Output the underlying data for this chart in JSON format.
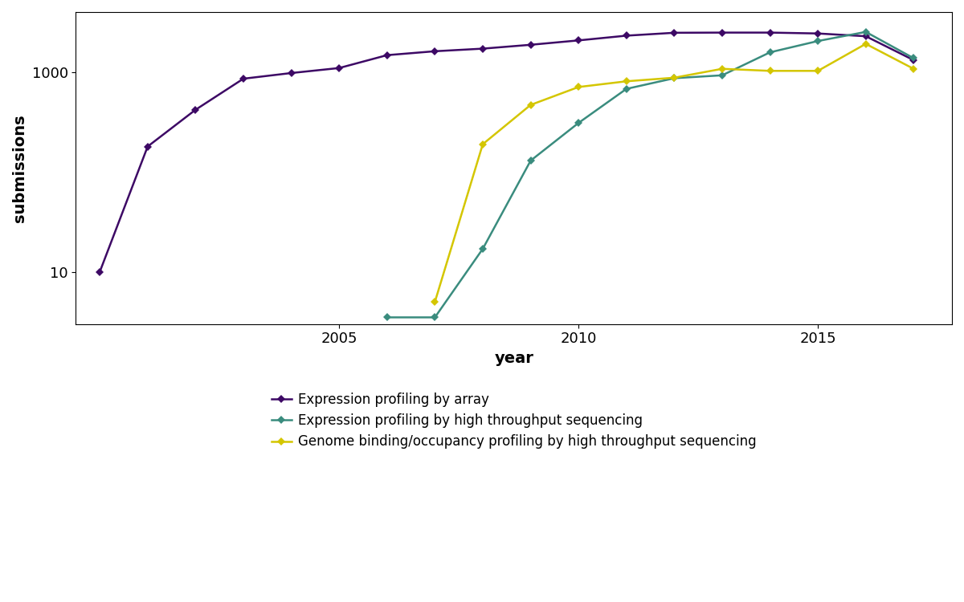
{
  "series": [
    {
      "label": "Expression profiling by array",
      "color": "#3d0965",
      "years": [
        2000,
        2001,
        2002,
        2003,
        2004,
        2005,
        2006,
        2007,
        2008,
        2009,
        2010,
        2011,
        2012,
        2013,
        2014,
        2015,
        2016,
        2017
      ],
      "values": [
        10,
        180,
        420,
        860,
        980,
        1100,
        1480,
        1620,
        1720,
        1880,
        2080,
        2320,
        2480,
        2490,
        2490,
        2440,
        2290,
        1320
      ]
    },
    {
      "label": "Expression profiling by high throughput sequencing",
      "color": "#3a8c7e",
      "years": [
        2006,
        2007,
        2008,
        2009,
        2010,
        2011,
        2012,
        2013,
        2014,
        2015,
        2016,
        2017
      ],
      "values": [
        3.5,
        3.5,
        17,
        130,
        310,
        680,
        870,
        930,
        1580,
        2050,
        2530,
        1380
      ]
    },
    {
      "label": "Genome binding/occupancy profiling by high throughput sequencing",
      "color": "#d4c600",
      "years": [
        2007,
        2008,
        2009,
        2010,
        2011,
        2012,
        2013,
        2014,
        2015,
        2016,
        2017
      ],
      "values": [
        5,
        190,
        470,
        710,
        810,
        880,
        1080,
        1030,
        1030,
        1920,
        1080
      ]
    }
  ],
  "xlabel": "year",
  "ylabel": "submissions",
  "xlim": [
    1999.5,
    2017.8
  ],
  "ylim_log": [
    3,
    4000
  ],
  "yticks": [
    10,
    1000
  ],
  "xticks": [
    2005,
    2010,
    2015
  ],
  "legend_loc": "lower center",
  "background_color": "#ffffff",
  "marker": "D",
  "markersize": 5,
  "linewidth": 1.8,
  "label_fontsize": 14,
  "tick_fontsize": 13,
  "legend_fontsize": 12
}
